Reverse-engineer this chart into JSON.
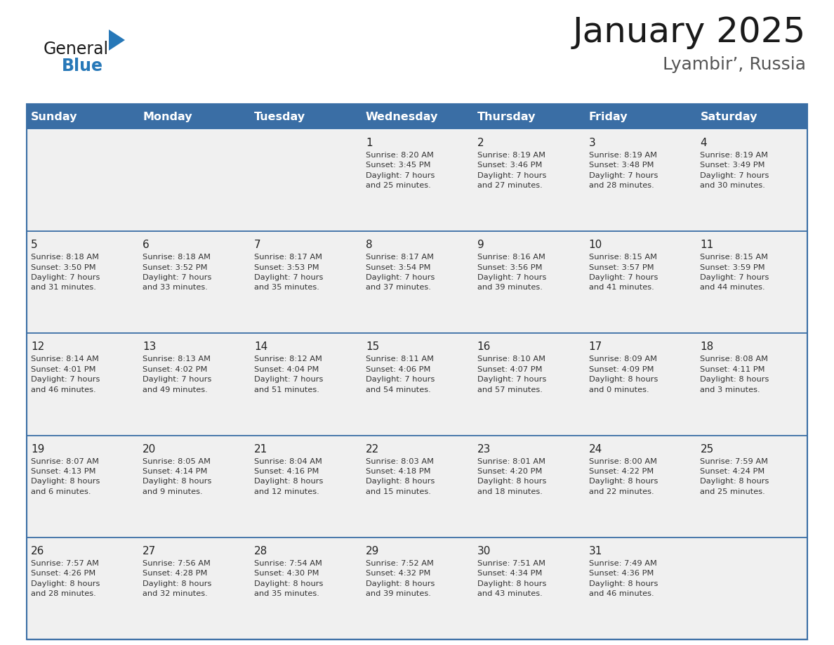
{
  "title": "January 2025",
  "subtitle": "Lyambir’, Russia",
  "header_color": "#3a6ea5",
  "header_text_color": "#ffffff",
  "cell_bg_color": "#f0f0f0",
  "day_names": [
    "Sunday",
    "Monday",
    "Tuesday",
    "Wednesday",
    "Thursday",
    "Friday",
    "Saturday"
  ],
  "grid_line_color": "#3a6ea5",
  "text_color": "#333333",
  "logo_general_color": "#1a1a1a",
  "logo_blue_color": "#2778b8",
  "logo_triangle_color": "#2778b8",
  "calendar": [
    [
      {
        "day": null,
        "info": null
      },
      {
        "day": null,
        "info": null
      },
      {
        "day": null,
        "info": null
      },
      {
        "day": 1,
        "info": "Sunrise: 8:20 AM\nSunset: 3:45 PM\nDaylight: 7 hours\nand 25 minutes."
      },
      {
        "day": 2,
        "info": "Sunrise: 8:19 AM\nSunset: 3:46 PM\nDaylight: 7 hours\nand 27 minutes."
      },
      {
        "day": 3,
        "info": "Sunrise: 8:19 AM\nSunset: 3:48 PM\nDaylight: 7 hours\nand 28 minutes."
      },
      {
        "day": 4,
        "info": "Sunrise: 8:19 AM\nSunset: 3:49 PM\nDaylight: 7 hours\nand 30 minutes."
      }
    ],
    [
      {
        "day": 5,
        "info": "Sunrise: 8:18 AM\nSunset: 3:50 PM\nDaylight: 7 hours\nand 31 minutes."
      },
      {
        "day": 6,
        "info": "Sunrise: 8:18 AM\nSunset: 3:52 PM\nDaylight: 7 hours\nand 33 minutes."
      },
      {
        "day": 7,
        "info": "Sunrise: 8:17 AM\nSunset: 3:53 PM\nDaylight: 7 hours\nand 35 minutes."
      },
      {
        "day": 8,
        "info": "Sunrise: 8:17 AM\nSunset: 3:54 PM\nDaylight: 7 hours\nand 37 minutes."
      },
      {
        "day": 9,
        "info": "Sunrise: 8:16 AM\nSunset: 3:56 PM\nDaylight: 7 hours\nand 39 minutes."
      },
      {
        "day": 10,
        "info": "Sunrise: 8:15 AM\nSunset: 3:57 PM\nDaylight: 7 hours\nand 41 minutes."
      },
      {
        "day": 11,
        "info": "Sunrise: 8:15 AM\nSunset: 3:59 PM\nDaylight: 7 hours\nand 44 minutes."
      }
    ],
    [
      {
        "day": 12,
        "info": "Sunrise: 8:14 AM\nSunset: 4:01 PM\nDaylight: 7 hours\nand 46 minutes."
      },
      {
        "day": 13,
        "info": "Sunrise: 8:13 AM\nSunset: 4:02 PM\nDaylight: 7 hours\nand 49 minutes."
      },
      {
        "day": 14,
        "info": "Sunrise: 8:12 AM\nSunset: 4:04 PM\nDaylight: 7 hours\nand 51 minutes."
      },
      {
        "day": 15,
        "info": "Sunrise: 8:11 AM\nSunset: 4:06 PM\nDaylight: 7 hours\nand 54 minutes."
      },
      {
        "day": 16,
        "info": "Sunrise: 8:10 AM\nSunset: 4:07 PM\nDaylight: 7 hours\nand 57 minutes."
      },
      {
        "day": 17,
        "info": "Sunrise: 8:09 AM\nSunset: 4:09 PM\nDaylight: 8 hours\nand 0 minutes."
      },
      {
        "day": 18,
        "info": "Sunrise: 8:08 AM\nSunset: 4:11 PM\nDaylight: 8 hours\nand 3 minutes."
      }
    ],
    [
      {
        "day": 19,
        "info": "Sunrise: 8:07 AM\nSunset: 4:13 PM\nDaylight: 8 hours\nand 6 minutes."
      },
      {
        "day": 20,
        "info": "Sunrise: 8:05 AM\nSunset: 4:14 PM\nDaylight: 8 hours\nand 9 minutes."
      },
      {
        "day": 21,
        "info": "Sunrise: 8:04 AM\nSunset: 4:16 PM\nDaylight: 8 hours\nand 12 minutes."
      },
      {
        "day": 22,
        "info": "Sunrise: 8:03 AM\nSunset: 4:18 PM\nDaylight: 8 hours\nand 15 minutes."
      },
      {
        "day": 23,
        "info": "Sunrise: 8:01 AM\nSunset: 4:20 PM\nDaylight: 8 hours\nand 18 minutes."
      },
      {
        "day": 24,
        "info": "Sunrise: 8:00 AM\nSunset: 4:22 PM\nDaylight: 8 hours\nand 22 minutes."
      },
      {
        "day": 25,
        "info": "Sunrise: 7:59 AM\nSunset: 4:24 PM\nDaylight: 8 hours\nand 25 minutes."
      }
    ],
    [
      {
        "day": 26,
        "info": "Sunrise: 7:57 AM\nSunset: 4:26 PM\nDaylight: 8 hours\nand 28 minutes."
      },
      {
        "day": 27,
        "info": "Sunrise: 7:56 AM\nSunset: 4:28 PM\nDaylight: 8 hours\nand 32 minutes."
      },
      {
        "day": 28,
        "info": "Sunrise: 7:54 AM\nSunset: 4:30 PM\nDaylight: 8 hours\nand 35 minutes."
      },
      {
        "day": 29,
        "info": "Sunrise: 7:52 AM\nSunset: 4:32 PM\nDaylight: 8 hours\nand 39 minutes."
      },
      {
        "day": 30,
        "info": "Sunrise: 7:51 AM\nSunset: 4:34 PM\nDaylight: 8 hours\nand 43 minutes."
      },
      {
        "day": 31,
        "info": "Sunrise: 7:49 AM\nSunset: 4:36 PM\nDaylight: 8 hours\nand 46 minutes."
      },
      {
        "day": null,
        "info": null
      }
    ]
  ]
}
